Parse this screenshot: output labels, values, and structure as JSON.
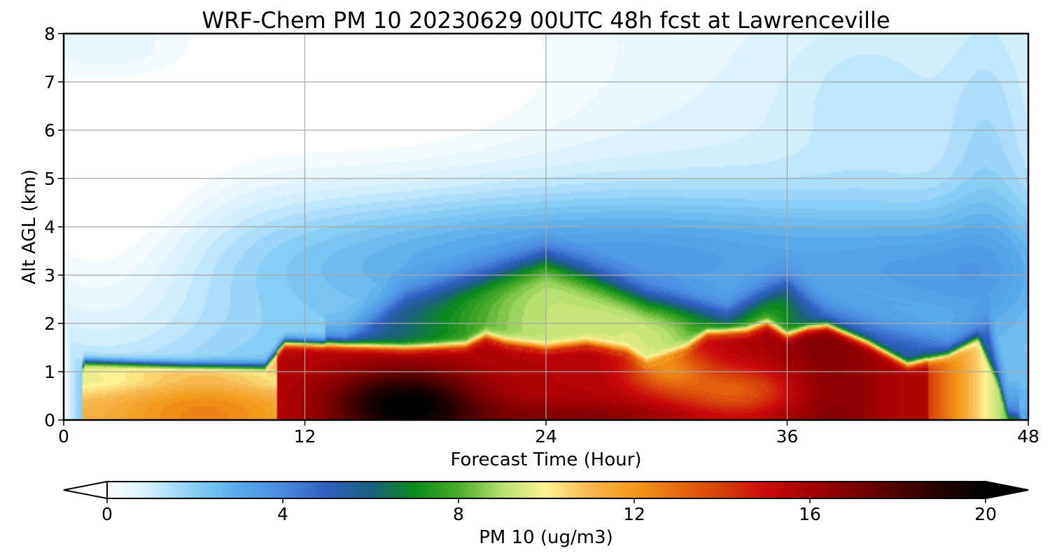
{
  "chart_data": {
    "type": "heatmap",
    "title": "WRF-Chem PM 10  20230629 00UTC 48h fcst at Lawrenceville",
    "xlabel": "Forecast Time (Hour)",
    "ylabel": "Alt AGL (km)",
    "xlim": [
      0,
      48
    ],
    "ylim": [
      0,
      8
    ],
    "x_ticks": [
      "0",
      "12",
      "24",
      "36",
      "48"
    ],
    "y_ticks": [
      "0",
      "1",
      "2",
      "3",
      "4",
      "5",
      "6",
      "7",
      "8"
    ],
    "grid": true,
    "colorbar": {
      "label": "PM 10  (ug/m3)",
      "ticks": [
        "0",
        "4",
        "8",
        "12",
        "16",
        "20"
      ],
      "range": [
        0,
        20
      ],
      "extend": "both",
      "orientation": "horizontal",
      "stops": [
        {
          "v": 0,
          "c": "#ffffff"
        },
        {
          "v": 1,
          "c": "#d2eefb"
        },
        {
          "v": 2,
          "c": "#84cdf5"
        },
        {
          "v": 3,
          "c": "#56a9ea"
        },
        {
          "v": 4,
          "c": "#4a8ce0"
        },
        {
          "v": 5,
          "c": "#2d5fc0"
        },
        {
          "v": 6,
          "c": "#1a6080"
        },
        {
          "v": 7,
          "c": "#0a8a1a"
        },
        {
          "v": 8,
          "c": "#4aad2a"
        },
        {
          "v": 9,
          "c": "#b8e070"
        },
        {
          "v": 10,
          "c": "#fff394"
        },
        {
          "v": 11,
          "c": "#f7b64f"
        },
        {
          "v": 12,
          "c": "#f39a1a"
        },
        {
          "v": 13,
          "c": "#e66a10"
        },
        {
          "v": 14,
          "c": "#d53e0a"
        },
        {
          "v": 15,
          "c": "#cc0a0a"
        },
        {
          "v": 16,
          "c": "#a60000"
        },
        {
          "v": 17,
          "c": "#7a0000"
        },
        {
          "v": 18,
          "c": "#4e0000"
        },
        {
          "v": 19,
          "c": "#200000"
        },
        {
          "v": 20,
          "c": "#000000"
        }
      ]
    },
    "boundary_layer_top_km": [
      [
        0,
        0.1
      ],
      [
        0.6,
        0.3
      ],
      [
        1,
        1.2
      ],
      [
        6,
        1.12
      ],
      [
        10,
        1.1
      ],
      [
        11,
        1.6
      ],
      [
        14,
        1.55
      ],
      [
        17,
        1.5
      ],
      [
        20,
        1.55
      ],
      [
        21,
        1.75
      ],
      [
        22,
        1.62
      ],
      [
        24,
        1.5
      ],
      [
        26,
        1.6
      ],
      [
        28,
        1.45
      ],
      [
        29,
        1.2
      ],
      [
        31,
        1.5
      ],
      [
        32,
        1.8
      ],
      [
        34,
        1.85
      ],
      [
        35,
        2.0
      ],
      [
        36,
        1.75
      ],
      [
        37,
        1.9
      ],
      [
        38,
        1.95
      ],
      [
        40,
        1.6
      ],
      [
        42,
        1.15
      ],
      [
        44,
        1.35
      ],
      [
        45.5,
        1.7
      ],
      [
        46.5,
        0.8
      ],
      [
        47,
        0.05
      ],
      [
        48,
        0.0
      ]
    ],
    "green_layer_top_km": [
      [
        14,
        1.7
      ],
      [
        17,
        2.6
      ],
      [
        21,
        2.95
      ],
      [
        24,
        3.3
      ],
      [
        26,
        3.0
      ],
      [
        29,
        2.5
      ],
      [
        33,
        2.2
      ],
      [
        36,
        2.8
      ],
      [
        38,
        2.3
      ],
      [
        41,
        1.9
      ],
      [
        44,
        1.6
      ],
      [
        46,
        2.0
      ],
      [
        47,
        0.2
      ]
    ],
    "pm10_samples": [
      {
        "hour": 0,
        "km": 0.5,
        "value": 2
      },
      {
        "hour": 3,
        "km": 0.7,
        "value": 11
      },
      {
        "hour": 8,
        "km": 0.5,
        "value": 12
      },
      {
        "hour": 14,
        "km": 0.8,
        "value": 16
      },
      {
        "hour": 17,
        "km": 0.3,
        "value": 20
      },
      {
        "hour": 22,
        "km": 2.5,
        "value": 8
      },
      {
        "hour": 24,
        "km": 2.3,
        "value": 10
      },
      {
        "hour": 26,
        "km": 0.8,
        "value": 16
      },
      {
        "hour": 30,
        "km": 1.4,
        "value": 12
      },
      {
        "hour": 33,
        "km": 0.7,
        "value": 13
      },
      {
        "hour": 38,
        "km": 1.2,
        "value": 16
      },
      {
        "hour": 44,
        "km": 0.6,
        "value": 11
      },
      {
        "hour": 46,
        "km": 0.5,
        "value": 9
      },
      {
        "hour": 6,
        "km": 6.5,
        "value": 1
      },
      {
        "hour": 20,
        "km": 4.0,
        "value": 4
      },
      {
        "hour": 36,
        "km": 4.0,
        "value": 4
      },
      {
        "hour": 46,
        "km": 6.0,
        "value": 3
      }
    ]
  }
}
